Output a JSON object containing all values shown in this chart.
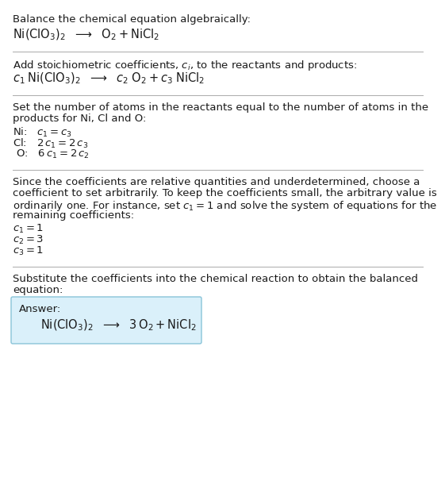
{
  "bg_color": "#ffffff",
  "box_fill": "#daf0fa",
  "box_edge": "#89c4d8",
  "text_color": "#1a1a1a",
  "sep_color": "#aaaaaa",
  "fs": 9.5,
  "fs_eq": 10.5,
  "sections": [
    {
      "type": "text_then_eq",
      "text": "Balance the chemical equation algebraically:",
      "eq": "$\\mathrm{Ni(ClO_3)_2}$  $\\longrightarrow$  $\\mathrm{O_2 + NiCl_2}$",
      "sep_after": true
    },
    {
      "type": "text_then_eq",
      "text": "Add stoichiometric coefficients, $c_i$, to the reactants and products:",
      "eq": "$c_1\\;\\mathrm{Ni(ClO_3)_2}$  $\\longrightarrow$  $c_2\\;\\mathrm{O_2} + c_3\\;\\mathrm{NiCl_2}$",
      "sep_after": true
    },
    {
      "type": "equations_block",
      "header": [
        "Set the number of atoms in the reactants equal to the number of atoms in the",
        "products for Ni, Cl and O:"
      ],
      "equations": [
        "Ni:   $c_1 = c_3$",
        "Cl:   $2\\,c_1 = 2\\,c_3$",
        "O:    $6\\,c_1 = 2\\,c_2$"
      ],
      "sep_after": true
    },
    {
      "type": "coeff_block",
      "header": [
        "Since the coefficients are relative quantities and underdetermined, choose a",
        "coefficient to set arbitrarily. To keep the coefficients small, the arbitrary value is",
        "ordinarily one. For instance, set $c_1 = 1$ and solve the system of equations for the",
        "remaining coefficients:"
      ],
      "values": [
        "$c_1 = 1$",
        "$c_2 = 3$",
        "$c_3 = 1$"
      ],
      "sep_after": true
    },
    {
      "type": "answer_block",
      "header": [
        "Substitute the coefficients into the chemical reaction to obtain the balanced",
        "equation:"
      ],
      "answer_label": "Answer:",
      "answer_eq": "$\\mathrm{Ni(ClO_3)_2}$  $\\longrightarrow$  $\\mathrm{3\\,O_2 + NiCl_2}$",
      "sep_after": false
    }
  ]
}
